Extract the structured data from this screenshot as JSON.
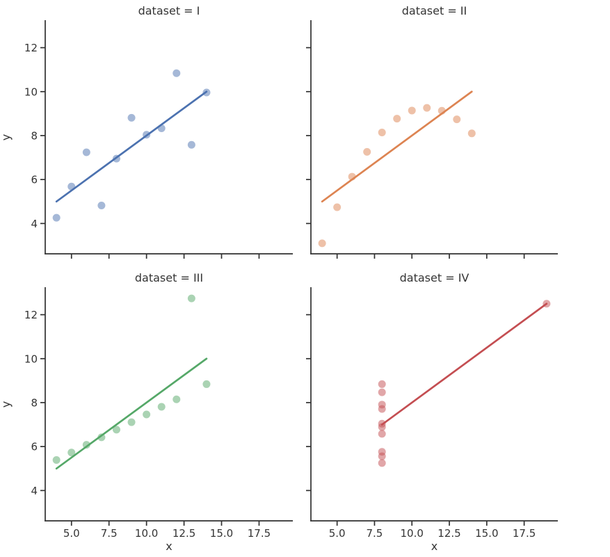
{
  "figure": {
    "kind": "seaborn-lmplot-facet-grid",
    "background": "#ffffff",
    "text_color": "#343434",
    "spine_color": "#303030"
  },
  "chart_data": {
    "type": "scatter",
    "facet_variable": "dataset",
    "xlabel": "x",
    "ylabel": "y",
    "xlim": [
      3.25,
      19.75
    ],
    "ylim": [
      2.62,
      13.22
    ],
    "xticks": [
      5.0,
      7.5,
      10.0,
      12.5,
      15.0,
      17.5
    ],
    "xtick_labels": [
      "5.0",
      "7.5",
      "10.0",
      "12.5",
      "15.0",
      "17.5"
    ],
    "yticks": [
      4,
      6,
      8,
      10,
      12
    ],
    "ytick_labels": [
      "4",
      "6",
      "8",
      "10",
      "12"
    ],
    "grid": false,
    "legend": null,
    "panels": [
      {
        "title": "dataset = I",
        "color": "#4c72b0",
        "x": [
          10,
          8,
          13,
          9,
          11,
          14,
          6,
          4,
          12,
          7,
          5
        ],
        "y": [
          8.04,
          6.95,
          7.58,
          8.81,
          8.33,
          9.96,
          7.24,
          4.26,
          10.84,
          4.82,
          5.68
        ],
        "regression_line": {
          "x1": 4,
          "y1": 5.0,
          "x2": 14,
          "y2": 10.0
        }
      },
      {
        "title": "dataset = II",
        "color": "#dd8452",
        "x": [
          10,
          8,
          13,
          9,
          11,
          14,
          6,
          4,
          12,
          7,
          5
        ],
        "y": [
          9.14,
          8.14,
          8.74,
          8.77,
          9.26,
          8.1,
          6.13,
          3.1,
          9.13,
          7.26,
          4.74
        ],
        "regression_line": {
          "x1": 4,
          "y1": 5.0,
          "x2": 14,
          "y2": 10.0
        }
      },
      {
        "title": "dataset = III",
        "color": "#55a868",
        "x": [
          10,
          8,
          13,
          9,
          11,
          14,
          6,
          4,
          12,
          7,
          5
        ],
        "y": [
          7.46,
          6.77,
          12.74,
          7.11,
          7.81,
          8.84,
          6.08,
          5.39,
          8.15,
          6.42,
          5.73
        ],
        "regression_line": {
          "x1": 4,
          "y1": 5.0,
          "x2": 14,
          "y2": 10.0
        }
      },
      {
        "title": "dataset = IV",
        "color": "#c44e52",
        "x": [
          8,
          8,
          8,
          8,
          8,
          8,
          8,
          19,
          8,
          8,
          8
        ],
        "y": [
          6.58,
          5.76,
          7.71,
          8.84,
          8.47,
          7.04,
          5.25,
          12.5,
          5.56,
          7.91,
          6.89
        ],
        "regression_line": {
          "x1": 8,
          "y1": 7.0,
          "x2": 19,
          "y2": 12.5
        }
      }
    ]
  }
}
